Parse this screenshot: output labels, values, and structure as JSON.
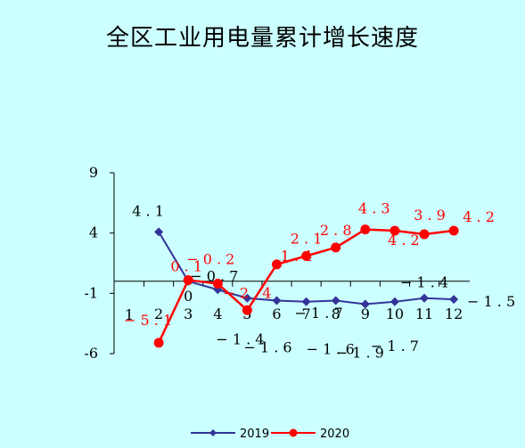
{
  "chart_data": {
    "type": "line",
    "title": "全区工业用电量累计增长速度",
    "categories": [
      "1",
      "2",
      "3",
      "4",
      "5",
      "6",
      "7",
      "8",
      "9",
      "10",
      "11",
      "12"
    ],
    "yticks": [
      "9",
      "4",
      "-1",
      "-6"
    ],
    "ylim": [
      -6,
      9
    ],
    "series": [
      {
        "name": "2019",
        "color": "#333399",
        "marker": "diamond",
        "values": [
          null,
          4.1,
          0,
          -0.7,
          -1.4,
          -1.6,
          -1.7,
          -1.6,
          -1.9,
          -1.7,
          -1.4,
          -1.5
        ],
        "labels": [
          "",
          "4.1",
          "0",
          "-0.7",
          "-1.4",
          "-1.6",
          "-1.7",
          "-1.6",
          "-1.9",
          "-1.7",
          "-1.4",
          "-1.5"
        ]
      },
      {
        "name": "2020",
        "color": "#ff0000",
        "marker": "circle",
        "values": [
          null,
          -5.1,
          0.1,
          -0.2,
          -2.4,
          1.4,
          2.1,
          2.8,
          4.3,
          4.2,
          3.9,
          4.2
        ],
        "labels": [
          "",
          "-5.1",
          "0.1",
          "-0.2",
          "-2.4",
          "1.4",
          "2.1",
          "2.8",
          "4.3",
          "4.2",
          "3.9",
          "4.2"
        ]
      }
    ],
    "legend_position": "bottom",
    "grid": false
  }
}
